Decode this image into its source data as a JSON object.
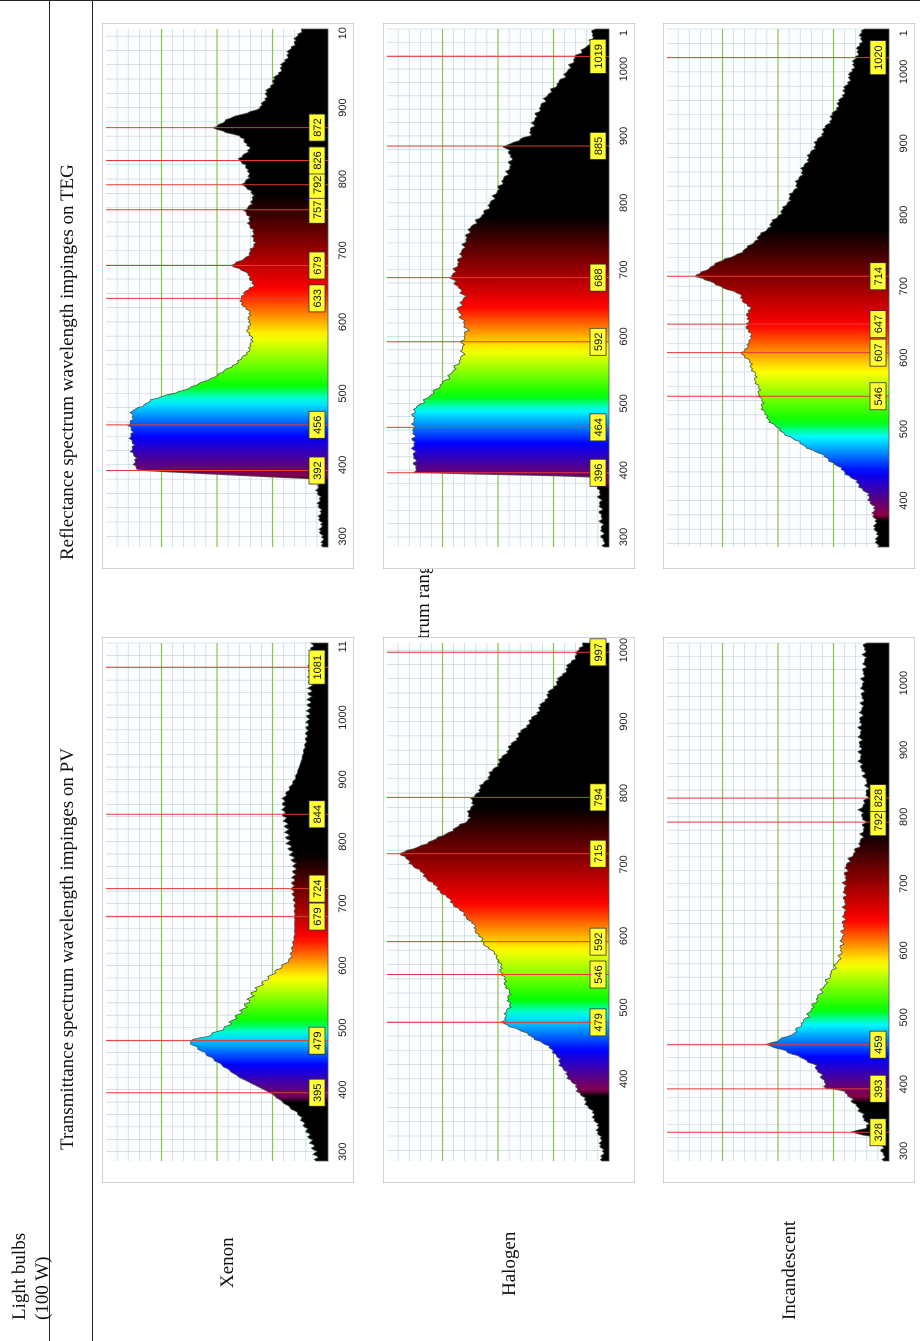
{
  "table": {
    "header_col1": [
      "Light bulbs",
      "(100 W)"
    ],
    "header_group": "Spectrum ranges",
    "header_pv": "Transmittance spectrum wavelength impinges on PV",
    "header_teg": "Reflectance spectrum wavelength impinges on TEG",
    "rows": [
      {
        "bulb": "Xenon"
      },
      {
        "bulb": "Halogen"
      },
      {
        "bulb": "Incandescent"
      }
    ]
  },
  "chart_data": [
    {
      "name": "Xenon PV transmittance",
      "type": "area",
      "xlim": [
        285,
        1120
      ],
      "axis_ticks": [
        "300",
        "400",
        "500",
        "600",
        "700",
        "800",
        "900",
        "1000",
        "11"
      ],
      "peak_labels": [
        "395",
        "479",
        "679",
        "724",
        "844",
        "1081"
      ],
      "curve": [
        [
          285,
          0.05
        ],
        [
          300,
          0.06
        ],
        [
          330,
          0.09
        ],
        [
          360,
          0.13
        ],
        [
          395,
          0.26
        ],
        [
          420,
          0.4
        ],
        [
          450,
          0.52
        ],
        [
          470,
          0.6
        ],
        [
          479,
          0.63
        ],
        [
          485,
          0.55
        ],
        [
          500,
          0.46
        ],
        [
          530,
          0.38
        ],
        [
          560,
          0.33
        ],
        [
          580,
          0.27
        ],
        [
          595,
          0.22
        ],
        [
          610,
          0.17
        ],
        [
          650,
          0.15
        ],
        [
          700,
          0.15
        ],
        [
          724,
          0.16
        ],
        [
          760,
          0.15
        ],
        [
          800,
          0.18
        ],
        [
          830,
          0.19
        ],
        [
          844,
          0.2
        ],
        [
          870,
          0.2
        ],
        [
          900,
          0.15
        ],
        [
          930,
          0.12
        ],
        [
          960,
          0.1
        ],
        [
          1000,
          0.09
        ],
        [
          1050,
          0.08
        ],
        [
          1081,
          0.08
        ],
        [
          1120,
          0.07
        ]
      ]
    },
    {
      "name": "Xenon TEG reflectance",
      "type": "area",
      "xlim": [
        285,
        1010
      ],
      "axis_ticks": [
        "300",
        "400",
        "500",
        "600",
        "700",
        "800",
        "900",
        "10"
      ],
      "peak_labels": [
        "392",
        "456",
        "633",
        "679",
        "757",
        "792",
        "826",
        "872"
      ],
      "curve": [
        [
          285,
          0.02
        ],
        [
          300,
          0.03
        ],
        [
          350,
          0.04
        ],
        [
          380,
          0.05
        ],
        [
          392,
          0.86
        ],
        [
          420,
          0.88
        ],
        [
          456,
          0.89
        ],
        [
          475,
          0.88
        ],
        [
          490,
          0.8
        ],
        [
          510,
          0.6
        ],
        [
          530,
          0.47
        ],
        [
          550,
          0.38
        ],
        [
          570,
          0.34
        ],
        [
          590,
          0.36
        ],
        [
          610,
          0.35
        ],
        [
          633,
          0.4
        ],
        [
          650,
          0.34
        ],
        [
          665,
          0.35
        ],
        [
          679,
          0.43
        ],
        [
          695,
          0.35
        ],
        [
          715,
          0.33
        ],
        [
          735,
          0.35
        ],
        [
          757,
          0.37
        ],
        [
          775,
          0.33
        ],
        [
          792,
          0.38
        ],
        [
          810,
          0.35
        ],
        [
          826,
          0.4
        ],
        [
          845,
          0.35
        ],
        [
          860,
          0.4
        ],
        [
          872,
          0.52
        ],
        [
          885,
          0.44
        ],
        [
          900,
          0.3
        ],
        [
          925,
          0.27
        ],
        [
          950,
          0.22
        ],
        [
          975,
          0.18
        ],
        [
          1010,
          0.12
        ]
      ]
    },
    {
      "name": "Halogen PV transmittance",
      "type": "area",
      "xlim": [
        285,
        1010
      ],
      "axis_ticks": [
        "400",
        "500",
        "600",
        "700",
        "800",
        "900",
        "1000"
      ],
      "peak_labels": [
        "479",
        "546",
        "592",
        "715",
        "794",
        "997"
      ],
      "curve": [
        [
          285,
          0.03
        ],
        [
          300,
          0.03
        ],
        [
          330,
          0.05
        ],
        [
          350,
          0.07
        ],
        [
          380,
          0.13
        ],
        [
          410,
          0.2
        ],
        [
          440,
          0.25
        ],
        [
          460,
          0.35
        ],
        [
          479,
          0.48
        ],
        [
          500,
          0.45
        ],
        [
          520,
          0.45
        ],
        [
          546,
          0.48
        ],
        [
          570,
          0.5
        ],
        [
          592,
          0.57
        ],
        [
          620,
          0.62
        ],
        [
          660,
          0.75
        ],
        [
          690,
          0.85
        ],
        [
          715,
          0.94
        ],
        [
          735,
          0.78
        ],
        [
          760,
          0.64
        ],
        [
          794,
          0.61
        ],
        [
          820,
          0.55
        ],
        [
          850,
          0.48
        ],
        [
          880,
          0.41
        ],
        [
          910,
          0.33
        ],
        [
          940,
          0.27
        ],
        [
          970,
          0.2
        ],
        [
          997,
          0.14
        ],
        [
          1010,
          0.12
        ]
      ]
    },
    {
      "name": "Halogen TEG reflectance",
      "type": "area",
      "xlim": [
        285,
        1060
      ],
      "axis_ticks": [
        "300",
        "400",
        "500",
        "600",
        "700",
        "800",
        "900",
        "1000",
        "1"
      ],
      "peak_labels": [
        "396",
        "464",
        "592",
        "688",
        "885",
        "1019"
      ],
      "curve": [
        [
          285,
          0.02
        ],
        [
          300,
          0.03
        ],
        [
          350,
          0.04
        ],
        [
          390,
          0.05
        ],
        [
          396,
          0.87
        ],
        [
          430,
          0.88
        ],
        [
          464,
          0.88
        ],
        [
          490,
          0.88
        ],
        [
          510,
          0.81
        ],
        [
          540,
          0.72
        ],
        [
          570,
          0.66
        ],
        [
          592,
          0.66
        ],
        [
          610,
          0.64
        ],
        [
          640,
          0.68
        ],
        [
          660,
          0.65
        ],
        [
          688,
          0.71
        ],
        [
          710,
          0.68
        ],
        [
          730,
          0.66
        ],
        [
          760,
          0.63
        ],
        [
          790,
          0.55
        ],
        [
          820,
          0.5
        ],
        [
          850,
          0.45
        ],
        [
          870,
          0.44
        ],
        [
          885,
          0.47
        ],
        [
          900,
          0.36
        ],
        [
          930,
          0.33
        ],
        [
          960,
          0.28
        ],
        [
          990,
          0.2
        ],
        [
          1019,
          0.15
        ],
        [
          1040,
          0.08
        ],
        [
          1060,
          0.07
        ]
      ]
    },
    {
      "name": "Incandescent PV transmittance",
      "type": "area",
      "xlim": [
        285,
        1060
      ],
      "axis_ticks": [
        "300",
        "400",
        "500",
        "600",
        "700",
        "800",
        "900",
        "1000"
      ],
      "peak_labels": [
        "328",
        "393",
        "459",
        "792",
        "828"
      ],
      "curve": [
        [
          285,
          0.02
        ],
        [
          300,
          0.03
        ],
        [
          320,
          0.04
        ],
        [
          328,
          0.18
        ],
        [
          335,
          0.09
        ],
        [
          360,
          0.13
        ],
        [
          390,
          0.2
        ],
        [
          393,
          0.28
        ],
        [
          410,
          0.3
        ],
        [
          430,
          0.34
        ],
        [
          445,
          0.43
        ],
        [
          459,
          0.55
        ],
        [
          475,
          0.43
        ],
        [
          500,
          0.37
        ],
        [
          530,
          0.32
        ],
        [
          560,
          0.27
        ],
        [
          590,
          0.22
        ],
        [
          620,
          0.21
        ],
        [
          660,
          0.2
        ],
        [
          700,
          0.2
        ],
        [
          730,
          0.19
        ],
        [
          760,
          0.13
        ],
        [
          792,
          0.11
        ],
        [
          810,
          0.13
        ],
        [
          828,
          0.1
        ],
        [
          850,
          0.1
        ],
        [
          880,
          0.13
        ],
        [
          910,
          0.13
        ],
        [
          940,
          0.13
        ],
        [
          970,
          0.12
        ],
        [
          1000,
          0.12
        ],
        [
          1030,
          0.11
        ],
        [
          1060,
          0.11
        ]
      ]
    },
    {
      "name": "Incandescent TEG reflectance",
      "type": "area",
      "xlim": [
        335,
        1060
      ],
      "axis_ticks": [
        "400",
        "500",
        "600",
        "700",
        "800",
        "900",
        "1000",
        "1"
      ],
      "peak_labels": [
        "546",
        "607",
        "647",
        "714",
        "1020"
      ],
      "curve": [
        [
          335,
          0.05
        ],
        [
          360,
          0.06
        ],
        [
          390,
          0.07
        ],
        [
          410,
          0.1
        ],
        [
          430,
          0.16
        ],
        [
          460,
          0.28
        ],
        [
          480,
          0.4
        ],
        [
          500,
          0.5
        ],
        [
          520,
          0.56
        ],
        [
          546,
          0.58
        ],
        [
          570,
          0.6
        ],
        [
          590,
          0.62
        ],
        [
          607,
          0.66
        ],
        [
          625,
          0.62
        ],
        [
          647,
          0.64
        ],
        [
          670,
          0.63
        ],
        [
          690,
          0.68
        ],
        [
          714,
          0.87
        ],
        [
          730,
          0.79
        ],
        [
          750,
          0.65
        ],
        [
          780,
          0.55
        ],
        [
          810,
          0.47
        ],
        [
          840,
          0.42
        ],
        [
          870,
          0.38
        ],
        [
          900,
          0.33
        ],
        [
          930,
          0.27
        ],
        [
          960,
          0.22
        ],
        [
          990,
          0.18
        ],
        [
          1020,
          0.15
        ],
        [
          1040,
          0.13
        ],
        [
          1060,
          0.12
        ]
      ]
    }
  ]
}
